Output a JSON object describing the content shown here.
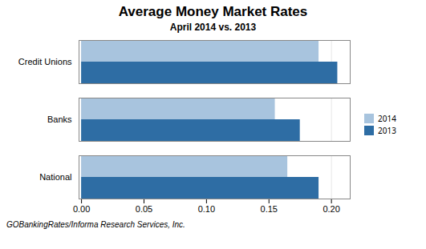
{
  "chart_data": {
    "type": "bar",
    "orientation": "horizontal",
    "title": "Average Money Market Rates",
    "subtitle": "April 2014 vs. 2013",
    "footnote": "GOBankingRates/Informa Research Services, Inc.",
    "categories": [
      "National",
      "Banks",
      "Credit Unions"
    ],
    "series": [
      {
        "name": "2014",
        "color": "#A8C4DE",
        "values": [
          0.165,
          0.155,
          0.19
        ]
      },
      {
        "name": "2013",
        "color": "#2E6DA4",
        "values": [
          0.19,
          0.175,
          0.205
        ]
      }
    ],
    "xlim": [
      -0.002,
      0.215
    ],
    "xticks": [
      {
        "value": 0.0,
        "label": "0.00"
      },
      0.05,
      {
        "value": 0.1,
        "label": "0.10"
      },
      0.15,
      {
        "value": 0.2,
        "label": "0.20"
      }
    ],
    "grid": true,
    "legend": "right"
  }
}
